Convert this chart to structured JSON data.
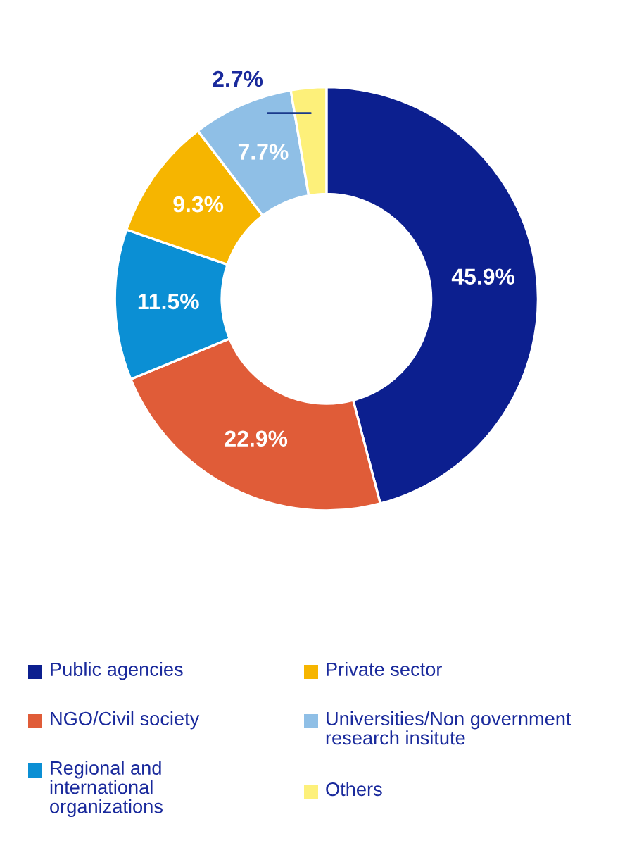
{
  "chart_data": {
    "type": "donut",
    "categories": [
      "Public agencies",
      "NGO/Civil society",
      "Regional and international organizations",
      "Private sector",
      "Universities/Non government research insitute",
      "Others"
    ],
    "values": [
      45.9,
      22.9,
      11.5,
      9.3,
      7.7,
      2.7
    ],
    "colors": [
      "#0c1f8f",
      "#e05c38",
      "#0b8fd4",
      "#f6b500",
      "#8fbfe6",
      "#fdf07a"
    ],
    "value_labels": [
      "45.9%",
      "22.9%",
      "11.5%",
      "9.3%",
      "7.7%",
      "2.7%"
    ],
    "legend": "bottom"
  }
}
